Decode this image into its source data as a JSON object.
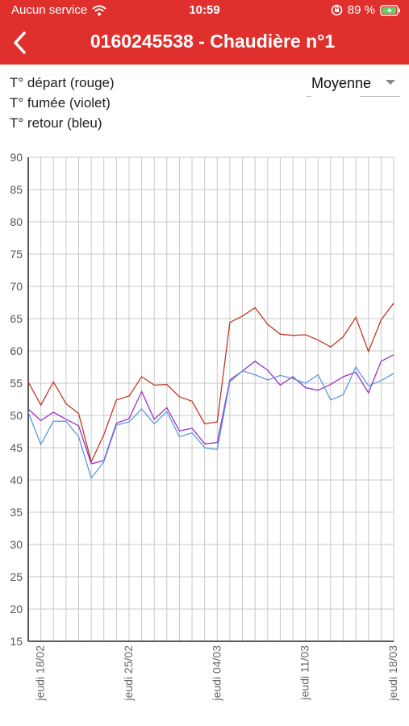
{
  "status": {
    "carrier": "Aucun service",
    "time": "10:59",
    "battery": "89 %"
  },
  "header": {
    "back_icon": "chevron-left-icon",
    "title": "0160245538 - Chaudière n°1"
  },
  "legend": [
    "T° départ (rouge)",
    "T° fumée (violet)",
    "T° retour (bleu)"
  ],
  "aggregation_select": {
    "value": "Moyenne"
  },
  "chart_data": {
    "type": "line",
    "ylim": [
      15,
      90
    ],
    "yticks": [
      15,
      20,
      25,
      30,
      35,
      40,
      45,
      50,
      55,
      60,
      65,
      70,
      75,
      80,
      85,
      90
    ],
    "x": [
      "17/02",
      "18/02",
      "19/02",
      "20/02",
      "21/02",
      "22/02",
      "23/02",
      "24/02",
      "25/02",
      "26/02",
      "27/02",
      "28/02",
      "01/03",
      "02/03",
      "03/03",
      "04/03",
      "05/03",
      "06/03",
      "07/03",
      "08/03",
      "09/03",
      "10/03",
      "11/03",
      "12/03",
      "13/03",
      "14/03",
      "15/03",
      "16/03",
      "17/03",
      "18/03"
    ],
    "x_tick_labels": [
      {
        "index": 1,
        "label": "jeudi 18/02"
      },
      {
        "index": 8,
        "label": "jeudi 25/02"
      },
      {
        "index": 15,
        "label": "jeudi 04/03"
      },
      {
        "index": 22,
        "label": "jeudi 11/03"
      },
      {
        "index": 29,
        "label": "jeudi 18/03"
      }
    ],
    "series": [
      {
        "color": "#c0392b",
        "values": [
          55.2,
          51.6,
          55.2,
          51.8,
          50.3,
          42.8,
          47.0,
          52.4,
          53.0,
          56.0,
          54.7,
          54.8,
          52.9,
          52.2,
          48.7,
          49.0,
          64.4,
          65.4,
          66.7,
          64.1,
          62.6,
          62.4,
          62.5,
          61.7,
          60.6,
          62.2,
          65.2,
          59.9,
          64.8,
          67.4
        ]
      },
      {
        "color": "#9b30c8",
        "values": [
          51.0,
          49.2,
          50.5,
          49.4,
          48.4,
          42.5,
          43.0,
          48.8,
          49.5,
          53.7,
          49.4,
          51.2,
          47.6,
          48.0,
          45.6,
          45.8,
          55.5,
          56.9,
          58.4,
          57.0,
          54.7,
          56.0,
          54.3,
          53.9,
          54.8,
          56.0,
          56.7,
          53.5,
          58.4,
          59.4
        ]
      },
      {
        "color": "#5b9be0",
        "values": [
          50.5,
          45.5,
          49.1,
          49.1,
          46.7,
          40.3,
          42.8,
          48.5,
          49.0,
          51.0,
          48.7,
          50.6,
          46.7,
          47.3,
          45.0,
          44.7,
          55.2,
          56.9,
          56.3,
          55.5,
          56.2,
          55.7,
          55.0,
          56.3,
          52.4,
          53.2,
          57.5,
          54.6,
          55.4,
          56.5
        ]
      }
    ]
  }
}
